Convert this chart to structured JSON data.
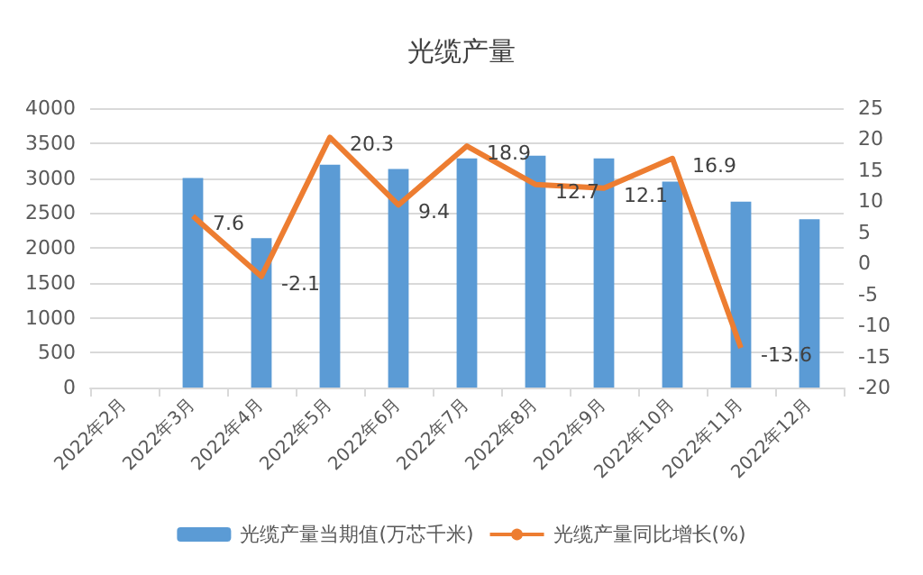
{
  "chart_data": {
    "type": "bar",
    "title": "光缆产量",
    "categories": [
      "2022年2月",
      "2022年3月",
      "2022年4月",
      "2022年5月",
      "2022年6月",
      "2022年7月",
      "2022年8月",
      "2022年9月",
      "2022年10月",
      "2022年11月",
      "2022年12月"
    ],
    "series": [
      {
        "name": "光缆产量当期值(万芯千米)",
        "color": "#5b9bd5",
        "values": [
          null,
          3000,
          2140,
          3190,
          3130,
          3280,
          3320,
          3280,
          2950,
          2660,
          2410
        ]
      },
      {
        "name": "光缆产量同比增长(%)",
        "type": "line",
        "axis": "y2",
        "color": "#ed7d31",
        "values": [
          null,
          7.6,
          -2.1,
          20.3,
          9.4,
          18.9,
          12.7,
          12.1,
          16.9,
          -13.6,
          null
        ],
        "value_labels": [
          null,
          "7.6",
          "-2.1",
          "20.3",
          "9.4",
          "18.9",
          "12.7",
          "12.1",
          "16.9",
          "-13.6",
          null
        ]
      }
    ],
    "ylim": [
      0,
      4000
    ],
    "yticks": [
      0,
      500,
      1000,
      1500,
      2000,
      2500,
      3000,
      3500,
      4000
    ],
    "y2lim": [
      -20,
      25
    ],
    "y2ticks": [
      -20,
      -15,
      -10,
      -5,
      0,
      5,
      10,
      15,
      20,
      25
    ],
    "grid": "y",
    "legend": "bottom",
    "marker": "none"
  }
}
